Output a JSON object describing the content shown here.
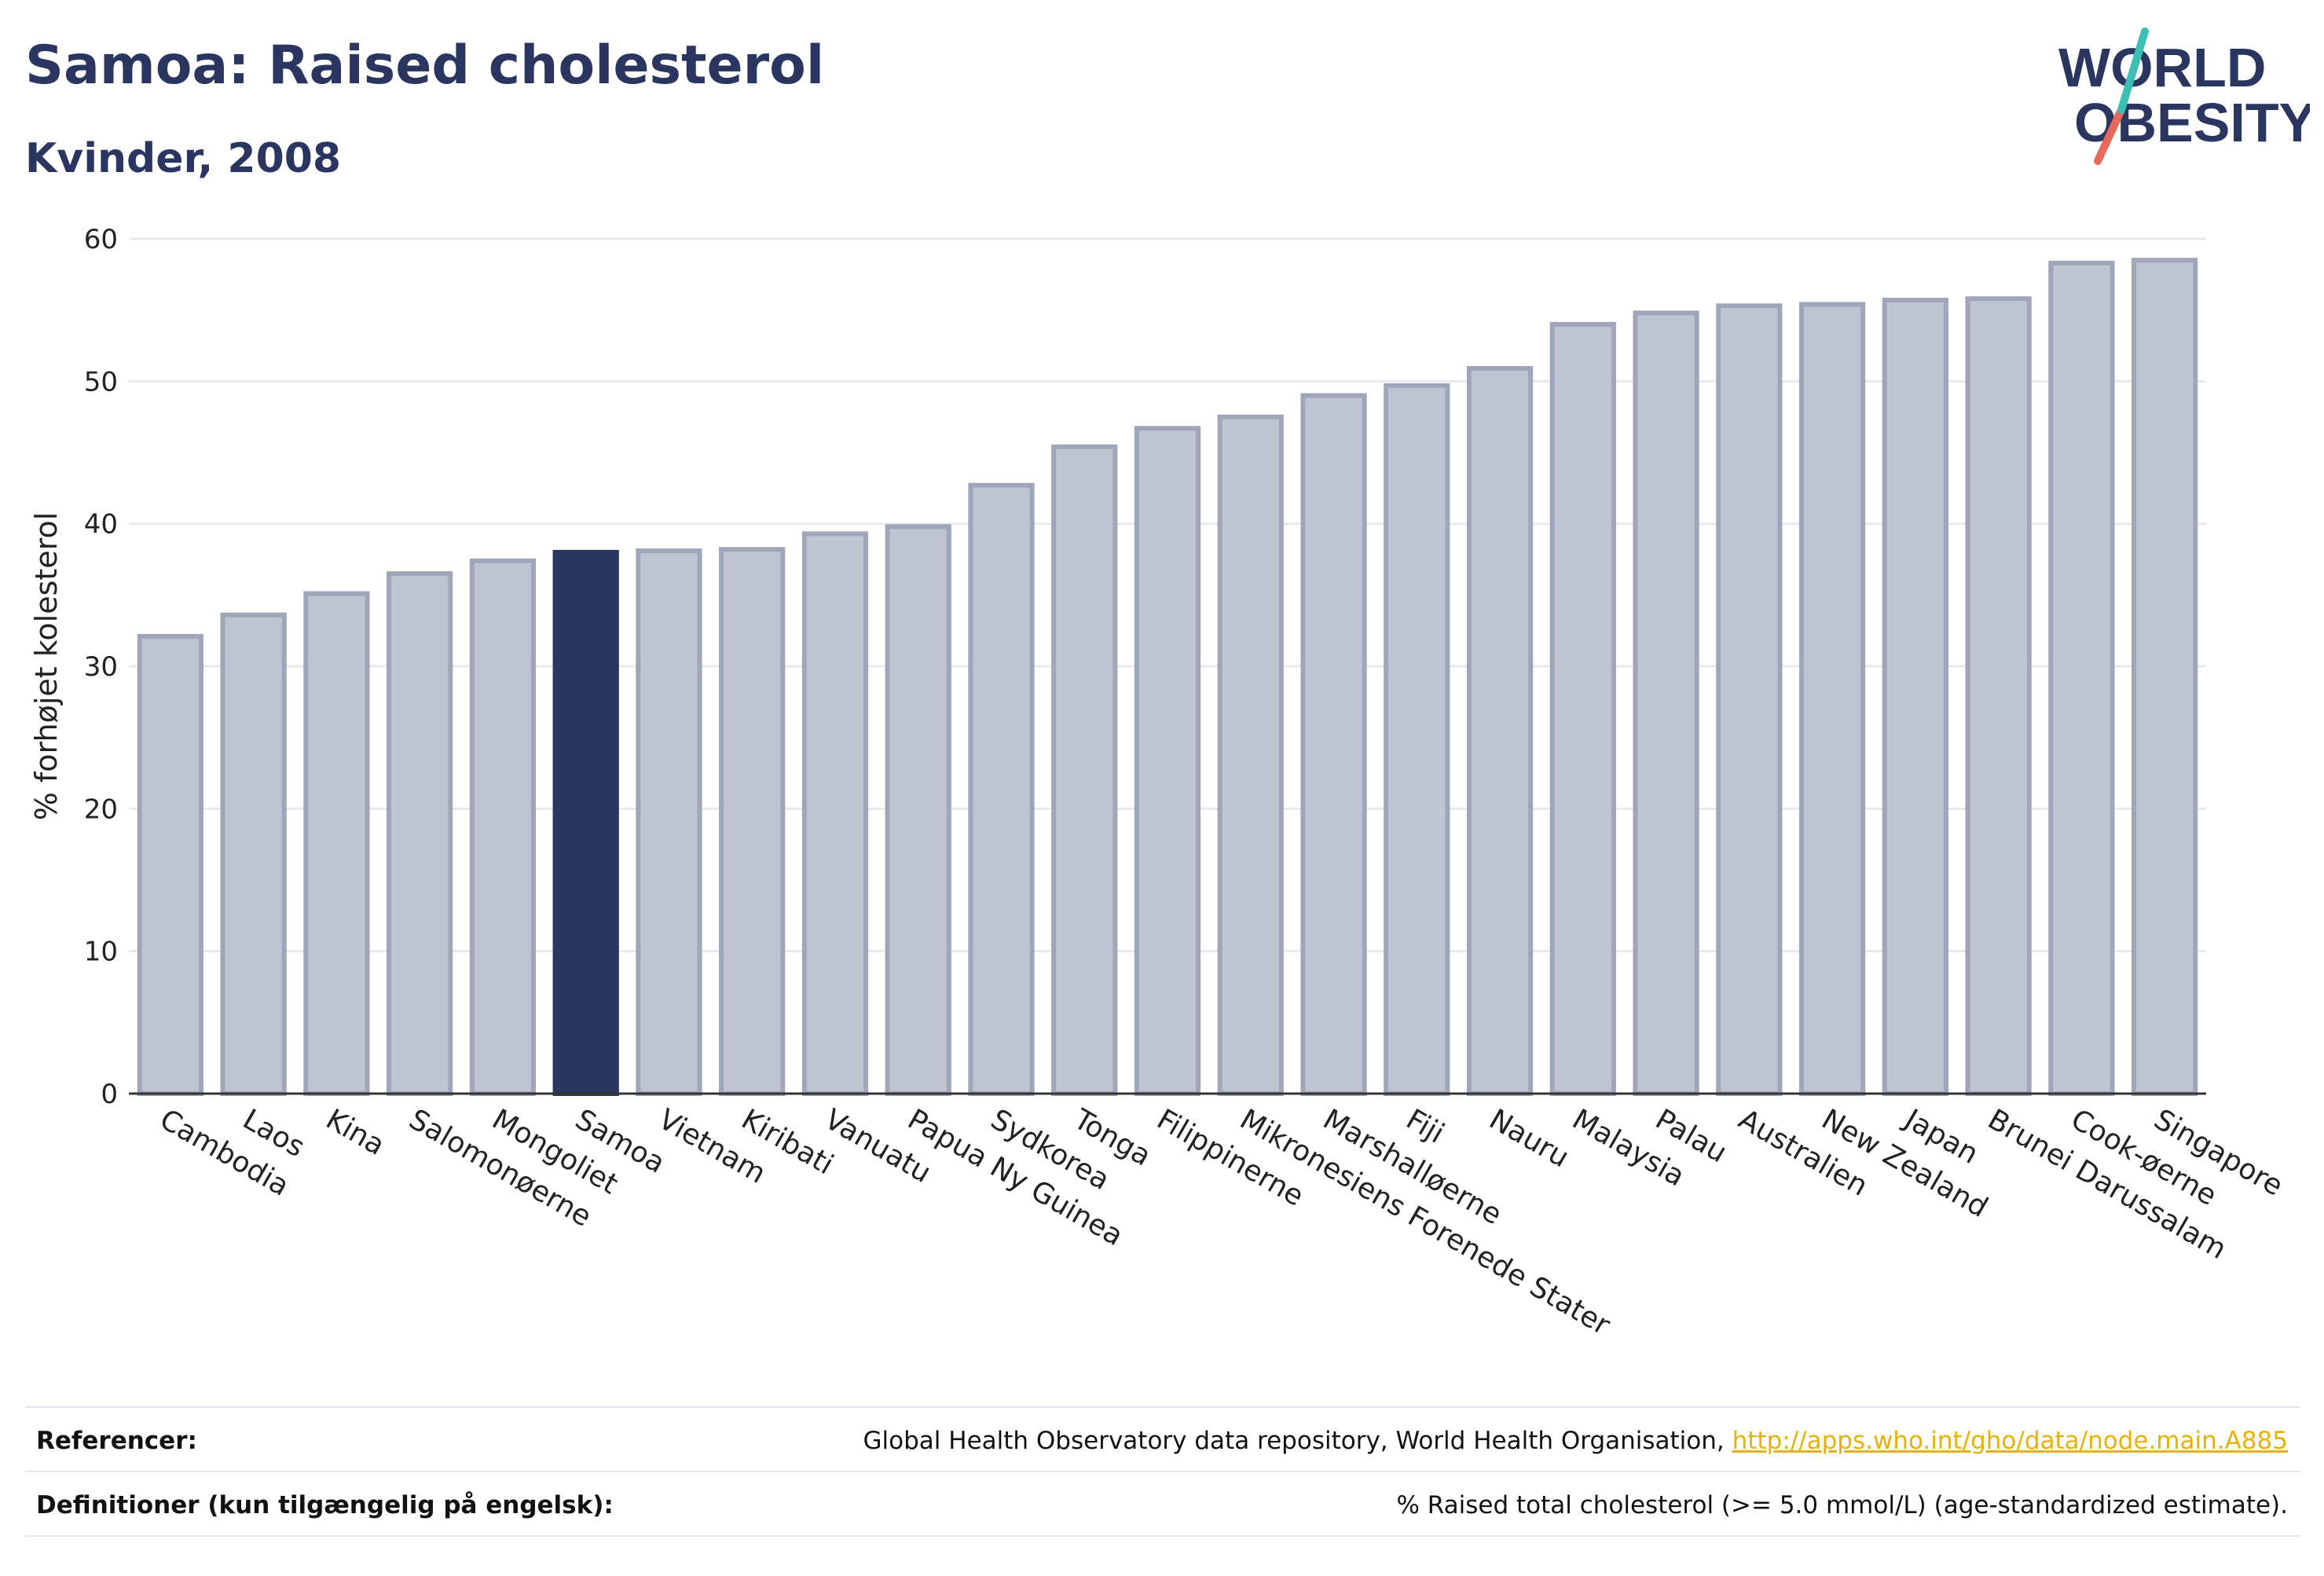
{
  "header": {
    "title": "Samoa: Raised cholesterol",
    "subtitle": "Kvinder, 2008"
  },
  "logo": {
    "line1": "WORLD",
    "line2": "OBESITY"
  },
  "chart_data": {
    "type": "bar",
    "ylabel": "% forhøjet kolesterol",
    "ylim": [
      0,
      60
    ],
    "yticks": [
      0,
      10,
      20,
      30,
      40,
      50,
      60
    ],
    "highlight": "Samoa",
    "categories": [
      "Cambodia",
      "Laos",
      "Kina",
      "Salomonøerne",
      "Mongoliet",
      "Samoa",
      "Vietnam",
      "Kiribati",
      "Vanuatu",
      "Papua Ny Guinea",
      "Sydkorea",
      "Tonga",
      "Filippinerne",
      "Mikronesiens Forenede Stater",
      "Marshalløerne",
      "Fiji",
      "Nauru",
      "Malaysia",
      "Palau",
      "Australien",
      "New Zealand",
      "Japan",
      "Brunei Darussalam",
      "Cook-øerne",
      "Singapore"
    ],
    "values": [
      32.1,
      33.6,
      35.1,
      36.5,
      37.4,
      38.0,
      38.1,
      38.2,
      39.3,
      39.8,
      42.7,
      45.4,
      46.7,
      47.5,
      49.0,
      49.7,
      50.9,
      54.0,
      54.8,
      55.3,
      55.4,
      55.7,
      55.8,
      58.3,
      58.5
    ],
    "colors": {
      "bar": "#c0c4d1",
      "bar_border": "#a0a6ba",
      "highlight": "#2a3560",
      "grid": "#e8eaf0",
      "axis": "#333333"
    }
  },
  "footer": {
    "references_label": "Referencer:",
    "references_text": "Global Health Observatory data repository, World Health Organisation, ",
    "references_link": "http://apps.who.int/gho/data/node.main.A885",
    "definitions_label": "Definitioner (kun tilgængelig på engelsk):",
    "definitions_text": "% Raised total cholesterol (>= 5.0 mmol/L) (age-standardized estimate)."
  }
}
